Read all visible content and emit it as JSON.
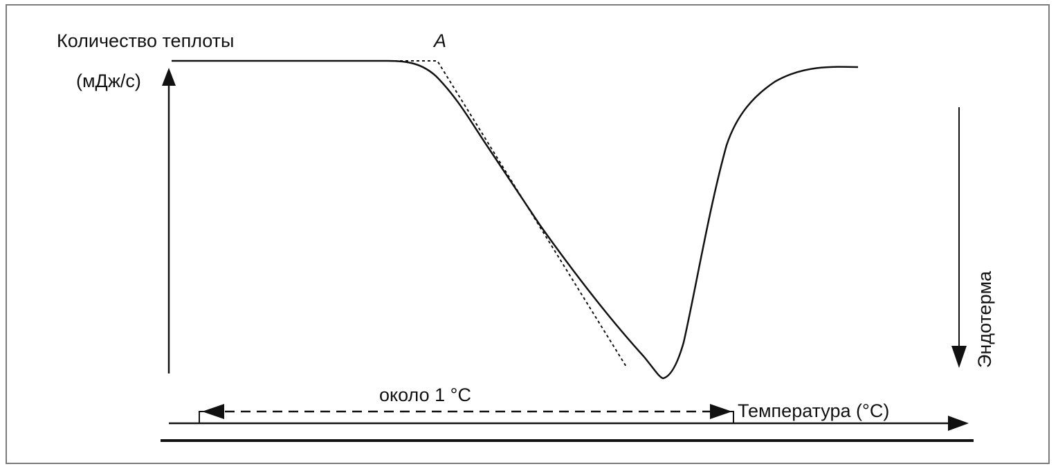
{
  "diagram": {
    "y_label_line1": "Количество теплоты",
    "y_label_line2": "(мДж/с)",
    "point_label": "A",
    "endotherm_label": "Эндотерма",
    "interval_label": "около 1 °С",
    "x_label": "Температура (°С)"
  },
  "colors": {
    "ink": "#111111",
    "frame": "#7a7a7a",
    "background": "#ffffff"
  }
}
